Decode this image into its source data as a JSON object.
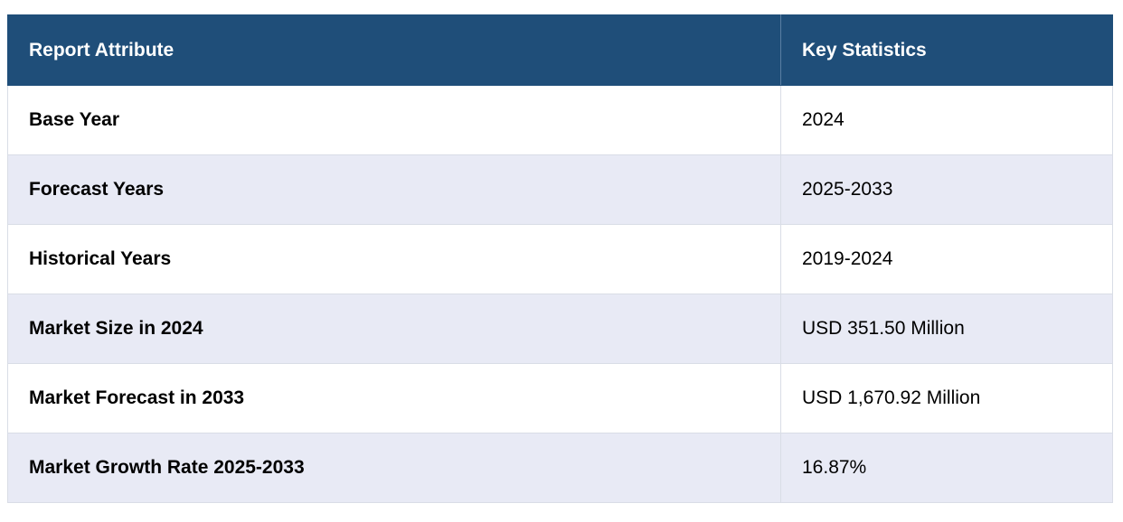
{
  "table": {
    "headers": {
      "attribute": "Report Attribute",
      "statistics": "Key Statistics"
    },
    "rows": [
      {
        "attribute": "Base Year",
        "value": "2024"
      },
      {
        "attribute": "Forecast Years",
        "value": "2025-2033"
      },
      {
        "attribute": "Historical Years",
        "value": "2019-2024"
      },
      {
        "attribute": "Market Size in 2024",
        "value": "USD 351.50 Million"
      },
      {
        "attribute": "Market Forecast in 2033",
        "value": "USD 1,670.92 Million"
      },
      {
        "attribute": "Market Growth Rate 2025-2033",
        "value": "16.87%"
      }
    ]
  },
  "colors": {
    "header_background": "#1f4e79",
    "header_text": "#ffffff",
    "alt_row_background": "#e8eaf5",
    "row_background": "#ffffff",
    "border": "#d9dde6"
  }
}
